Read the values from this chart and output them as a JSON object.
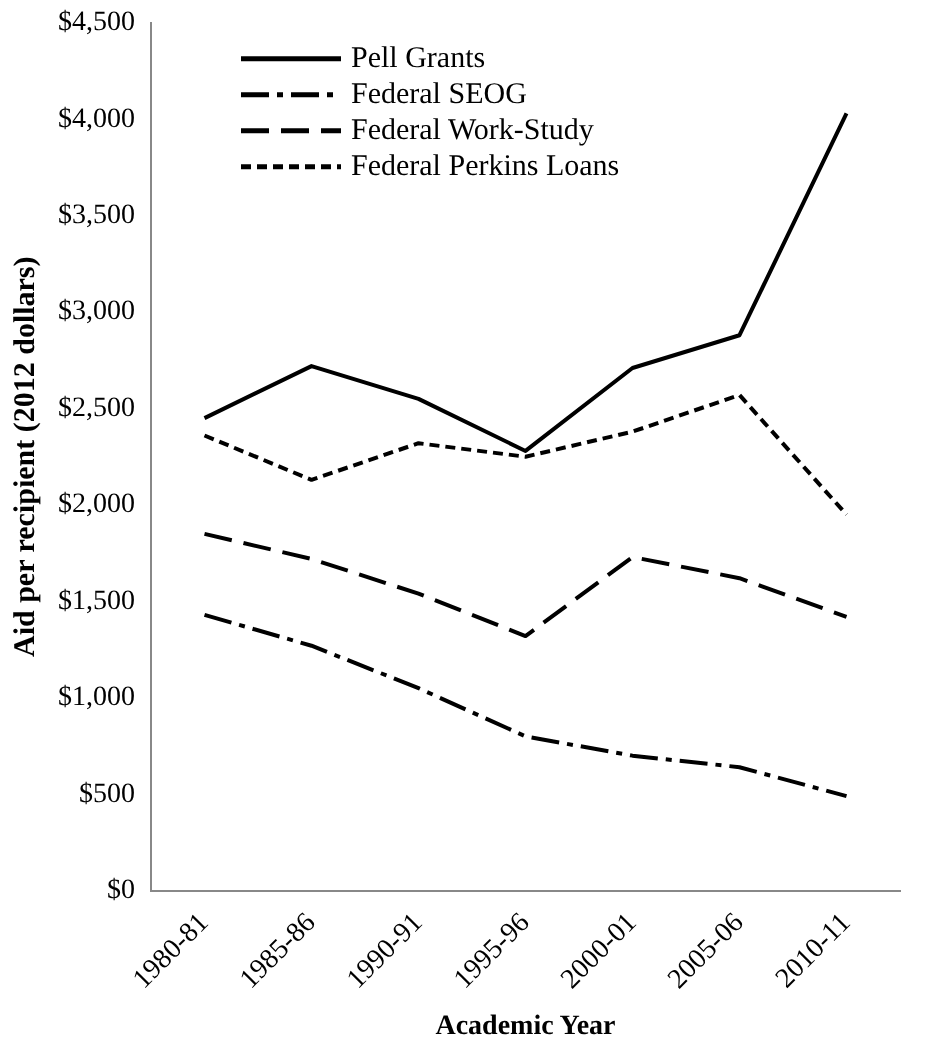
{
  "chart_data": {
    "type": "line",
    "xlabel": "Academic Year",
    "ylabel": "Aid per recipient (2012 dollars)",
    "categories": [
      "1980-81",
      "1985-86",
      "1990-91",
      "1995-96",
      "2000-01",
      "2005-06",
      "2010-11"
    ],
    "series": [
      {
        "name": "Pell Grants",
        "color": "#000000",
        "line_style": "solid",
        "values": [
          2450,
          2720,
          2550,
          2280,
          2710,
          2880,
          4030
        ]
      },
      {
        "name": "Federal SEOG",
        "color": "#000000",
        "line_style": "dashdot",
        "values": [
          1430,
          1270,
          1050,
          800,
          700,
          640,
          490
        ]
      },
      {
        "name": "Federal Work-Study",
        "color": "#000000",
        "line_style": "dashed",
        "values": [
          1850,
          1720,
          1540,
          1320,
          1730,
          1620,
          1420
        ]
      },
      {
        "name": "Federal Perkins Loans",
        "color": "#000000",
        "line_style": "dotted",
        "values": [
          2360,
          2130,
          2320,
          2250,
          2380,
          2570,
          1950
        ]
      }
    ],
    "ylim": [
      0,
      4500
    ],
    "yticks": [
      {
        "value": 0,
        "label": "$0"
      },
      {
        "value": 500,
        "label": "$500"
      },
      {
        "value": 1000,
        "label": "$1,000"
      },
      {
        "value": 1500,
        "label": "$1,500"
      },
      {
        "value": 2000,
        "label": "$2,000"
      },
      {
        "value": 2500,
        "label": "$2,500"
      },
      {
        "value": 3000,
        "label": "$3,000"
      },
      {
        "value": 3500,
        "label": "$3,500"
      },
      {
        "value": 4000,
        "label": "$4,000"
      },
      {
        "value": 4500,
        "label": "$4,500"
      }
    ],
    "grid": false,
    "legend": "top left",
    "marker": "none"
  }
}
